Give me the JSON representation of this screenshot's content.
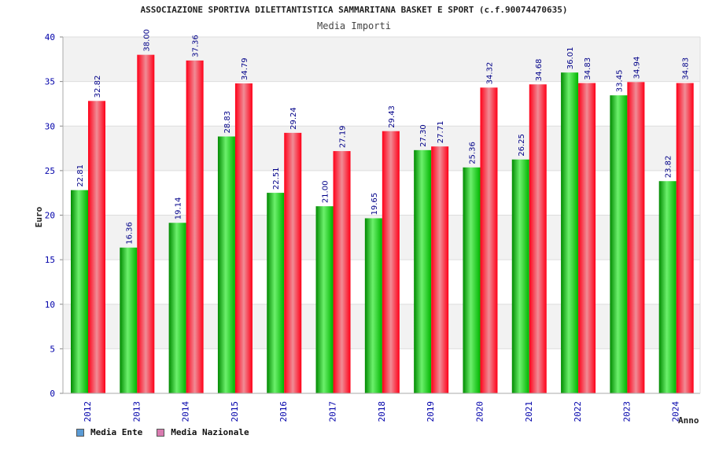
{
  "chart_data": {
    "type": "bar",
    "title": "ASSOCIAZIONE SPORTIVA DILETTANTISTICA SAMMARITANA BASKET E SPORT (c.f.90074470635)",
    "subtitle": "Media Importi",
    "xlabel": "Anno",
    "ylabel": "Euro",
    "ylim": [
      0,
      40
    ],
    "yticks": [
      0,
      5,
      10,
      15,
      20,
      25,
      30,
      35,
      40
    ],
    "grid": true,
    "legend_position": "bottom-left",
    "categories": [
      "2012",
      "2013",
      "2014",
      "2015",
      "2016",
      "2017",
      "2018",
      "2019",
      "2020",
      "2021",
      "2022",
      "2023",
      "2024"
    ],
    "series": [
      {
        "name": "Media Ente",
        "legend_color": "#5b9bd5",
        "bar_color": "#00cc00",
        "values": [
          22.81,
          16.36,
          19.14,
          28.83,
          22.51,
          21.0,
          19.65,
          27.3,
          25.36,
          26.25,
          36.01,
          33.45,
          23.82
        ],
        "labels": [
          "22.81",
          "16.36",
          "19.14",
          "28.83",
          "22.51",
          "21.00",
          "19.65",
          "27.30",
          "25.36",
          "26.25",
          "36.01",
          "33.45",
          "23.82"
        ]
      },
      {
        "name": "Media Nazionale",
        "legend_color": "#d97bb0",
        "bar_color": "#ff1a2e",
        "values": [
          32.82,
          38.0,
          37.36,
          34.79,
          29.24,
          27.19,
          29.43,
          27.71,
          34.32,
          34.68,
          34.83,
          34.94,
          34.83
        ],
        "labels": [
          "32.82",
          "38.00",
          "37.36",
          "34.79",
          "29.24",
          "27.19",
          "29.43",
          "27.71",
          "34.32",
          "34.68",
          "34.83",
          "34.94",
          "34.83"
        ]
      }
    ]
  }
}
